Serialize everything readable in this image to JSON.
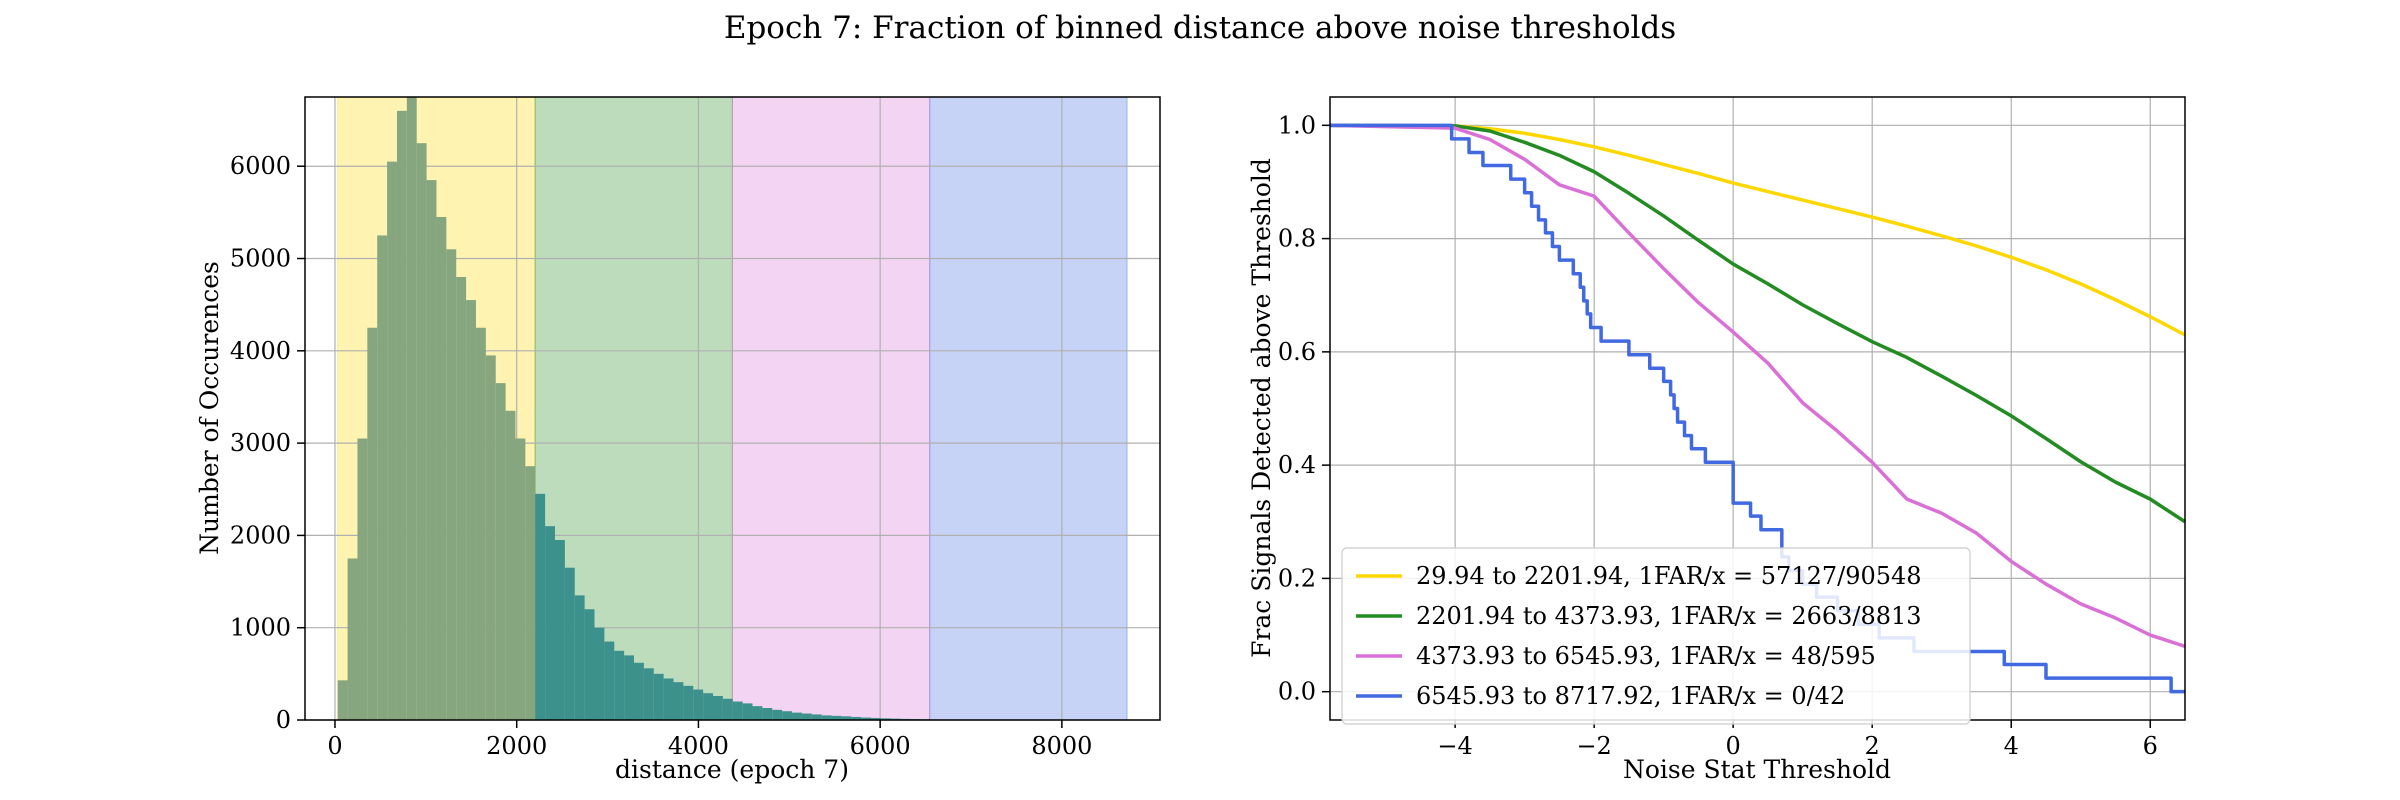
{
  "figure": {
    "suptitle": "Epoch 7: Fraction of binned distance above noise thresholds"
  },
  "chart_data": [
    {
      "type": "bar",
      "subtype": "histogram",
      "title": "",
      "xlabel": "distance (epoch 7)",
      "ylabel": "Number of Occurences",
      "xlim": [
        -330,
        9080
      ],
      "ylim": [
        0,
        6750
      ],
      "xticks": [
        0,
        2000,
        4000,
        6000,
        8000
      ],
      "xtick_labels": [
        "0",
        "2000",
        "4000",
        "6000",
        "8000"
      ],
      "yticks": [
        0,
        1000,
        2000,
        3000,
        4000,
        5000,
        6000
      ],
      "ytick_labels": [
        "0",
        "1000",
        "2000",
        "3000",
        "4000",
        "5000",
        "6000"
      ],
      "grid": true,
      "bin_width": 108.7,
      "bin_start": 29.94,
      "shaded_regions": [
        {
          "x0": 29.94,
          "x1": 2201.94,
          "color": "#FFD700"
        },
        {
          "x0": 2201.94,
          "x1": 4373.93,
          "color": "#228B22"
        },
        {
          "x0": 4373.93,
          "x1": 6545.93,
          "color": "#DA70D6"
        },
        {
          "x0": 6545.93,
          "x1": 8717.92,
          "color": "#4169E1"
        }
      ],
      "counts": [
        430,
        1750,
        3050,
        4250,
        5250,
        6050,
        6600,
        6750,
        6250,
        5850,
        5450,
        5100,
        4800,
        4550,
        4250,
        3950,
        3650,
        3350,
        3050,
        2750,
        2450,
        2100,
        1950,
        1650,
        1350,
        1200,
        1000,
        850,
        750,
        700,
        620,
        560,
        500,
        450,
        410,
        370,
        330,
        290,
        260,
        230,
        200,
        180,
        150,
        130,
        110,
        95,
        80,
        70,
        60,
        50,
        45,
        40,
        33,
        27,
        22,
        18,
        15,
        12,
        10,
        8,
        6,
        5,
        4,
        3,
        2,
        2,
        2,
        1,
        1,
        1,
        1,
        0,
        0,
        0,
        0,
        0,
        0,
        0,
        0,
        0
      ],
      "bar_color": "#5F9B8C"
    },
    {
      "type": "line",
      "subtype": "step",
      "title": "",
      "xlabel": "Noise Stat Threshold",
      "ylabel": "Frac Signals Detected above Threshold",
      "xlim": [
        -5.8,
        6.5
      ],
      "ylim": [
        -0.05,
        1.05
      ],
      "xticks": [
        -4,
        -2,
        0,
        2,
        4,
        6
      ],
      "xtick_labels": [
        "−4",
        "−2",
        "0",
        "2",
        "4",
        "6"
      ],
      "yticks": [
        0.0,
        0.2,
        0.4,
        0.6,
        0.8,
        1.0
      ],
      "ytick_labels": [
        "0.0",
        "0.2",
        "0.4",
        "0.6",
        "0.8",
        "1.0"
      ],
      "grid": true,
      "legend_position": "lower-left",
      "series": [
        {
          "name": "29.94 to 2201.94, 1FAR/x = 57127/90548",
          "color": "#FFD700",
          "x": [
            -5.8,
            -4,
            -3.5,
            -3,
            -2.5,
            -2,
            -1.5,
            -1,
            -0.5,
            0,
            0.5,
            1,
            1.5,
            2,
            2.5,
            3,
            3.5,
            4,
            4.5,
            5,
            5.5,
            6,
            6.5
          ],
          "y": [
            1.0,
            0.999,
            0.994,
            0.986,
            0.975,
            0.962,
            0.947,
            0.931,
            0.915,
            0.898,
            0.883,
            0.868,
            0.853,
            0.838,
            0.822,
            0.805,
            0.787,
            0.767,
            0.745,
            0.72,
            0.692,
            0.662,
            0.63
          ]
        },
        {
          "name": "2201.94 to 4373.93, 1FAR/x = 2663/8813",
          "color": "#228B22",
          "x": [
            -5.8,
            -4,
            -3.5,
            -3,
            -2.5,
            -2,
            -1.5,
            -1,
            -0.5,
            0,
            0.5,
            1,
            1.5,
            2,
            2.5,
            3,
            3.5,
            4,
            4.5,
            5,
            5.5,
            6,
            6.5
          ],
          "y": [
            1.0,
            0.999,
            0.99,
            0.97,
            0.947,
            0.918,
            0.88,
            0.84,
            0.797,
            0.755,
            0.72,
            0.683,
            0.65,
            0.618,
            0.59,
            0.557,
            0.523,
            0.487,
            0.447,
            0.406,
            0.37,
            0.34,
            0.3
          ]
        },
        {
          "name": "4373.93 to 6545.93, 1FAR/x = 48/595",
          "color": "#DA70D6",
          "x": [
            -5.8,
            -4,
            -3.5,
            -3,
            -2.5,
            -2,
            -1.5,
            -1,
            -0.5,
            0,
            0.5,
            1,
            1.5,
            2,
            2.5,
            3,
            3.5,
            4,
            4.5,
            5,
            5.5,
            6,
            6.5
          ],
          "y": [
            1.0,
            0.995,
            0.975,
            0.94,
            0.895,
            0.875,
            0.81,
            0.747,
            0.687,
            0.635,
            0.58,
            0.51,
            0.46,
            0.405,
            0.34,
            0.315,
            0.28,
            0.23,
            0.19,
            0.155,
            0.13,
            0.1,
            0.08
          ]
        },
        {
          "name": "6545.93 to 8717.92, 1FAR/x = 0/42",
          "color": "#4169E1",
          "x": [
            -5.8,
            -4.05,
            -3.8,
            -3.6,
            -3.2,
            -3.0,
            -2.9,
            -2.8,
            -2.7,
            -2.6,
            -2.5,
            -2.3,
            -2.2,
            -2.15,
            -2.1,
            -2.05,
            -1.9,
            -1.5,
            -1.2,
            -1.0,
            -0.9,
            -0.85,
            -0.8,
            -0.7,
            -0.6,
            -0.4,
            0.0,
            0.25,
            0.4,
            0.7,
            0.8,
            1.0,
            1.2,
            1.5,
            1.8,
            2.1,
            2.4,
            2.6,
            3.2,
            3.5,
            3.9,
            4.3,
            4.5,
            4.9,
            5.2,
            5.5,
            6.0,
            6.3,
            6.5
          ],
          "y": [
            1.0,
            0.976,
            0.952,
            0.929,
            0.905,
            0.881,
            0.857,
            0.833,
            0.81,
            0.786,
            0.762,
            0.738,
            0.714,
            0.69,
            0.667,
            0.643,
            0.619,
            0.595,
            0.571,
            0.548,
            0.524,
            0.5,
            0.476,
            0.452,
            0.429,
            0.405,
            0.333,
            0.31,
            0.286,
            0.238,
            0.214,
            0.19,
            0.167,
            0.143,
            0.119,
            0.095,
            0.095,
            0.071,
            0.071,
            0.071,
            0.048,
            0.048,
            0.024,
            0.024,
            0.024,
            0.024,
            0.024,
            0.0,
            0.0
          ]
        }
      ]
    }
  ]
}
